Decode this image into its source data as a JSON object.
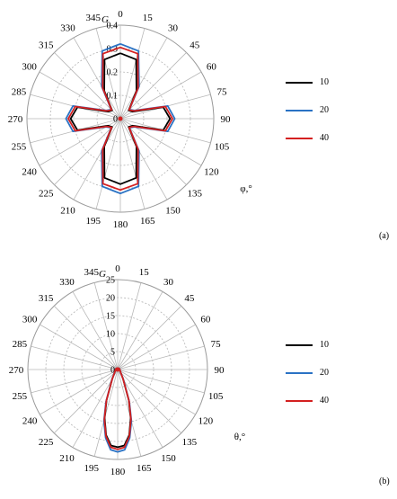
{
  "chart_data": [
    {
      "type": "polar-line",
      "panel_label": "(a)",
      "radial_axis_label": "G",
      "angular_axis_label": "φ,°",
      "angle_ticks": [
        "0",
        "15",
        "30",
        "45",
        "60",
        "75",
        "90",
        "105",
        "120",
        "135",
        "150",
        "165",
        "180",
        "195",
        "210",
        "225",
        "240",
        "255",
        "270",
        "285",
        "300",
        "315",
        "330",
        "345"
      ],
      "radial_ticks": [
        "0",
        "0.1",
        "0.2",
        "0.3",
        "0.4"
      ],
      "rlim": [
        0,
        0.4
      ],
      "grid": true,
      "legend_placement": "right",
      "series": [
        {
          "name": "10",
          "color": "#000000",
          "theta_deg": [
            0,
            15,
            30,
            45,
            60,
            75,
            90,
            105,
            120,
            135,
            150,
            165,
            180,
            195,
            210,
            225,
            240,
            255,
            270,
            285,
            300,
            315,
            330,
            345,
            360
          ],
          "r": [
            0.28,
            0.262,
            0.138,
            0.05,
            0.06,
            0.19,
            0.213,
            0.19,
            0.06,
            0.05,
            0.138,
            0.262,
            0.28,
            0.262,
            0.138,
            0.05,
            0.06,
            0.19,
            0.213,
            0.19,
            0.06,
            0.05,
            0.138,
            0.262,
            0.28
          ]
        },
        {
          "name": "20",
          "color": "#2a72c4",
          "theta_deg": [
            0,
            15,
            30,
            45,
            60,
            75,
            90,
            105,
            120,
            135,
            150,
            165,
            180,
            195,
            210,
            225,
            240,
            255,
            270,
            285,
            300,
            315,
            330,
            345,
            360
          ],
          "r": [
            0.32,
            0.3,
            0.16,
            0.055,
            0.07,
            0.21,
            0.233,
            0.21,
            0.07,
            0.055,
            0.16,
            0.3,
            0.32,
            0.3,
            0.16,
            0.055,
            0.07,
            0.21,
            0.233,
            0.21,
            0.07,
            0.055,
            0.16,
            0.3,
            0.32
          ]
        },
        {
          "name": "40",
          "color": "#d42020",
          "theta_deg": [
            0,
            15,
            30,
            45,
            60,
            75,
            90,
            105,
            120,
            135,
            150,
            165,
            180,
            195,
            210,
            225,
            240,
            255,
            270,
            285,
            300,
            315,
            330,
            345,
            360
          ],
          "r": [
            0.305,
            0.288,
            0.152,
            0.053,
            0.066,
            0.2,
            0.223,
            0.2,
            0.066,
            0.053,
            0.152,
            0.288,
            0.305,
            0.288,
            0.152,
            0.053,
            0.066,
            0.2,
            0.223,
            0.2,
            0.066,
            0.053,
            0.152,
            0.288,
            0.305
          ]
        }
      ]
    },
    {
      "type": "polar-line",
      "panel_label": "(b)",
      "radial_axis_label": "G",
      "angular_axis_label": "θ,°",
      "angle_ticks": [
        "0",
        "15",
        "30",
        "45",
        "60",
        "75",
        "90",
        "105",
        "120",
        "135",
        "150",
        "165",
        "180",
        "195",
        "210",
        "225",
        "240",
        "255",
        "270",
        "285",
        "300",
        "315",
        "330",
        "345"
      ],
      "radial_ticks": [
        "0",
        "5",
        "10",
        "15",
        "20",
        "25"
      ],
      "rlim": [
        0,
        25
      ],
      "grid": true,
      "legend_placement": "right",
      "series": [
        {
          "name": "10",
          "color": "#000000",
          "theta_deg": [
            0,
            30,
            60,
            90,
            120,
            135,
            150,
            160,
            165,
            170,
            175,
            180,
            185,
            190,
            195,
            200,
            210,
            225,
            240,
            270,
            300,
            330,
            360
          ],
          "r": [
            0.4,
            0.4,
            0.5,
            0.6,
            0.8,
            1.2,
            3.0,
            9.0,
            14.0,
            18.5,
            21.2,
            21.6,
            21.2,
            18.5,
            14.0,
            9.0,
            3.0,
            1.2,
            0.8,
            0.6,
            0.5,
            0.4,
            0.4
          ]
        },
        {
          "name": "20",
          "color": "#2a72c4",
          "theta_deg": [
            0,
            30,
            60,
            90,
            120,
            135,
            150,
            160,
            165,
            170,
            175,
            180,
            185,
            190,
            195,
            200,
            210,
            225,
            240,
            270,
            300,
            330,
            360
          ],
          "r": [
            0.4,
            0.4,
            0.5,
            0.6,
            0.8,
            1.2,
            3.2,
            9.5,
            14.8,
            19.3,
            22.4,
            22.9,
            22.4,
            19.3,
            14.8,
            9.5,
            3.2,
            1.2,
            0.8,
            0.6,
            0.5,
            0.4,
            0.4
          ]
        },
        {
          "name": "40",
          "color": "#d42020",
          "theta_deg": [
            0,
            30,
            60,
            90,
            120,
            135,
            150,
            160,
            165,
            170,
            175,
            180,
            185,
            190,
            195,
            200,
            210,
            225,
            240,
            270,
            300,
            330,
            360
          ],
          "r": [
            0.4,
            0.4,
            0.5,
            0.6,
            0.8,
            1.2,
            3.0,
            9.2,
            14.3,
            18.8,
            21.7,
            22.2,
            21.7,
            18.8,
            14.3,
            9.2,
            3.0,
            1.2,
            0.8,
            0.6,
            0.5,
            0.4,
            0.4
          ]
        }
      ]
    }
  ]
}
